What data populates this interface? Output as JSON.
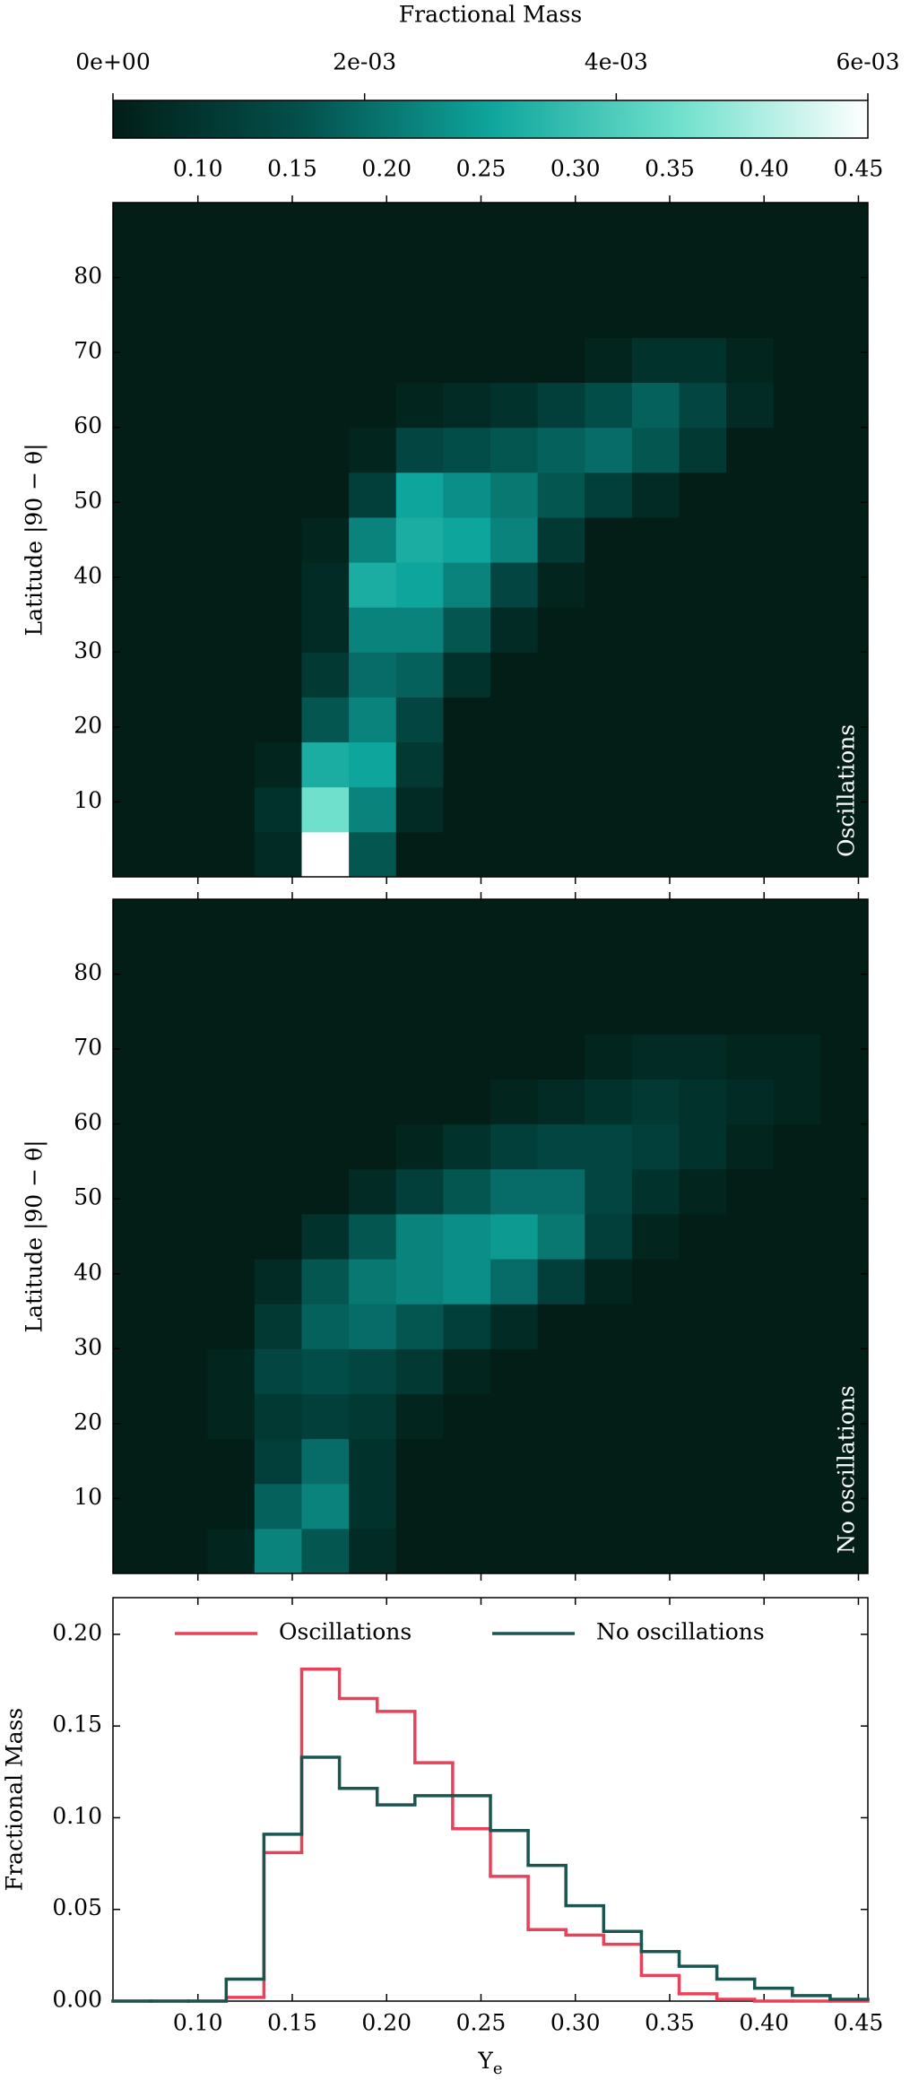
{
  "chart_data": [
    {
      "type": "heatmap",
      "colorbar_label": "Fractional Mass",
      "clim": [
        0,
        0.006
      ],
      "cticks": [
        {
          "value": 0,
          "label": "0e+00"
        },
        {
          "value": 0.002,
          "label": "2e-03"
        },
        {
          "value": 0.004,
          "label": "4e-03"
        },
        {
          "value": 0.006,
          "label": "6e-03"
        }
      ],
      "colormap": [
        "#021e17",
        "#03504c",
        "#0ea59c",
        "#6fe0cc",
        "#ffffff"
      ],
      "xbins": [
        0.055,
        0.08,
        0.105,
        0.13,
        0.155,
        0.18,
        0.205,
        0.23,
        0.255,
        0.28,
        0.305,
        0.33,
        0.355,
        0.38,
        0.405,
        0.43,
        0.455
      ],
      "ybins": [
        0,
        6,
        12,
        18,
        24,
        30,
        36,
        42,
        48,
        54,
        60,
        66,
        72,
        78,
        84,
        90
      ],
      "z": [
        [
          0,
          0,
          0,
          0.0004,
          0.006,
          0.0016,
          0,
          0,
          0,
          0,
          0,
          0,
          0,
          0,
          0,
          0
        ],
        [
          0,
          0,
          0,
          0.0006,
          0.0045,
          0.0024,
          0.0004,
          0,
          0,
          0,
          0,
          0,
          0,
          0,
          0,
          0
        ],
        [
          0,
          0,
          0,
          0.0002,
          0.0032,
          0.003,
          0.0008,
          0,
          0,
          0,
          0,
          0,
          0,
          0,
          0,
          0
        ],
        [
          0,
          0,
          0,
          0,
          0.0016,
          0.0024,
          0.0012,
          0,
          0,
          0,
          0,
          0,
          0,
          0,
          0,
          0
        ],
        [
          0,
          0,
          0,
          0,
          0.0008,
          0.002,
          0.0018,
          0.0006,
          0,
          0,
          0,
          0,
          0,
          0,
          0,
          0
        ],
        [
          0,
          0,
          0,
          0,
          0.0004,
          0.0024,
          0.0024,
          0.0016,
          0.0004,
          0,
          0,
          0,
          0,
          0,
          0,
          0
        ],
        [
          0,
          0,
          0,
          0,
          0.0004,
          0.0032,
          0.003,
          0.0024,
          0.0012,
          0.0002,
          0,
          0,
          0,
          0,
          0,
          0
        ],
        [
          0,
          0,
          0,
          0,
          0.0002,
          0.0024,
          0.0032,
          0.003,
          0.0024,
          0.0008,
          0,
          0,
          0,
          0,
          0,
          0
        ],
        [
          0,
          0,
          0,
          0,
          0,
          0.001,
          0.003,
          0.0026,
          0.0022,
          0.0016,
          0.001,
          0.0004,
          0,
          0,
          0,
          0
        ],
        [
          0,
          0,
          0,
          0,
          0,
          0.0002,
          0.0012,
          0.0014,
          0.0016,
          0.0018,
          0.002,
          0.0016,
          0.0008,
          0,
          0,
          0
        ],
        [
          0,
          0,
          0,
          0,
          0,
          0,
          0.0002,
          0.0004,
          0.0006,
          0.001,
          0.0014,
          0.0018,
          0.0012,
          0.0004,
          0,
          0
        ],
        [
          0,
          0,
          0,
          0,
          0,
          0,
          0,
          0,
          0,
          0,
          0.0002,
          0.0006,
          0.0006,
          0.0002,
          0,
          0
        ],
        [
          0,
          0,
          0,
          0,
          0,
          0,
          0,
          0,
          0,
          0,
          0,
          0,
          0,
          0,
          0,
          0
        ],
        [
          0,
          0,
          0,
          0,
          0,
          0,
          0,
          0,
          0,
          0,
          0,
          0,
          0,
          0,
          0,
          0
        ],
        [
          0,
          0,
          0,
          0,
          0,
          0,
          0,
          0,
          0,
          0,
          0,
          0,
          0,
          0,
          0,
          0
        ]
      ],
      "xlim": [
        0.055,
        0.455
      ],
      "xticks": [
        {
          "value": 0.1,
          "label": "0.10"
        },
        {
          "value": 0.15,
          "label": "0.15"
        },
        {
          "value": 0.2,
          "label": "0.20"
        },
        {
          "value": 0.25,
          "label": "0.25"
        },
        {
          "value": 0.3,
          "label": "0.30"
        },
        {
          "value": 0.35,
          "label": "0.35"
        },
        {
          "value": 0.4,
          "label": "0.40"
        },
        {
          "value": 0.45,
          "label": "0.45"
        }
      ],
      "ylim": [
        0,
        90
      ],
      "yticks": [
        10,
        20,
        30,
        40,
        50,
        60,
        70,
        80
      ],
      "ylabel": "Latitude |90 − θ|",
      "annotation": "Oscillations"
    },
    {
      "type": "heatmap",
      "xbins": [
        0.055,
        0.08,
        0.105,
        0.13,
        0.155,
        0.18,
        0.205,
        0.23,
        0.255,
        0.28,
        0.305,
        0.33,
        0.355,
        0.38,
        0.405,
        0.43,
        0.455
      ],
      "ybins": [
        0,
        6,
        12,
        18,
        24,
        30,
        36,
        42,
        48,
        54,
        60,
        66,
        72,
        78,
        84,
        90
      ],
      "z": [
        [
          0,
          0,
          0.0002,
          0.0024,
          0.0016,
          0.0004,
          0,
          0,
          0,
          0,
          0,
          0,
          0,
          0,
          0,
          0
        ],
        [
          0,
          0,
          0,
          0.0018,
          0.0024,
          0.0006,
          0,
          0,
          0,
          0,
          0,
          0,
          0,
          0,
          0,
          0
        ],
        [
          0,
          0,
          0,
          0.001,
          0.002,
          0.0006,
          0,
          0,
          0,
          0,
          0,
          0,
          0,
          0,
          0,
          0
        ],
        [
          0,
          0,
          0.0002,
          0.0008,
          0.001,
          0.0008,
          0.0002,
          0,
          0,
          0,
          0,
          0,
          0,
          0,
          0,
          0
        ],
        [
          0,
          0,
          0.0002,
          0.0012,
          0.0014,
          0.0012,
          0.0008,
          0.0002,
          0,
          0,
          0,
          0,
          0,
          0,
          0,
          0
        ],
        [
          0,
          0,
          0,
          0.0008,
          0.0018,
          0.002,
          0.0016,
          0.001,
          0.0004,
          0,
          0,
          0,
          0,
          0,
          0,
          0
        ],
        [
          0,
          0,
          0,
          0.0004,
          0.0016,
          0.0022,
          0.0024,
          0.0026,
          0.002,
          0.001,
          0.0002,
          0,
          0,
          0,
          0,
          0
        ],
        [
          0,
          0,
          0,
          0,
          0.0006,
          0.0016,
          0.0024,
          0.0026,
          0.0028,
          0.0022,
          0.001,
          0.0002,
          0,
          0,
          0,
          0
        ],
        [
          0,
          0,
          0,
          0,
          0,
          0.0004,
          0.001,
          0.0016,
          0.002,
          0.002,
          0.0012,
          0.0006,
          0.0002,
          0,
          0,
          0
        ],
        [
          0,
          0,
          0,
          0,
          0,
          0,
          0.0002,
          0.0006,
          0.001,
          0.0012,
          0.0012,
          0.001,
          0.0006,
          0.0002,
          0,
          0
        ],
        [
          0,
          0,
          0,
          0,
          0,
          0,
          0,
          0,
          0.0002,
          0.0004,
          0.0006,
          0.0008,
          0.0006,
          0.0004,
          0.0002,
          0
        ],
        [
          0,
          0,
          0,
          0,
          0,
          0,
          0,
          0,
          0,
          0,
          0.0002,
          0.0004,
          0.0004,
          0.0002,
          0.0002,
          0
        ],
        [
          0,
          0,
          0,
          0,
          0,
          0,
          0,
          0,
          0,
          0,
          0,
          0,
          0,
          0,
          0,
          0
        ],
        [
          0,
          0,
          0,
          0,
          0,
          0,
          0,
          0,
          0,
          0,
          0,
          0,
          0,
          0,
          0,
          0
        ],
        [
          0,
          0,
          0,
          0,
          0,
          0,
          0,
          0,
          0,
          0,
          0,
          0,
          0,
          0,
          0,
          0
        ]
      ],
      "xlim": [
        0.055,
        0.455
      ],
      "xticks": [
        0.1,
        0.15,
        0.2,
        0.25,
        0.3,
        0.35,
        0.4,
        0.45
      ],
      "ylim": [
        0,
        90
      ],
      "yticks": [
        10,
        20,
        30,
        40,
        50,
        60,
        70,
        80
      ],
      "ylabel": "Latitude |90 − θ|",
      "annotation": "No oscillations"
    },
    {
      "type": "histogram",
      "bins": [
        0.055,
        0.075,
        0.095,
        0.115,
        0.135,
        0.155,
        0.175,
        0.195,
        0.215,
        0.235,
        0.255,
        0.275,
        0.295,
        0.315,
        0.335,
        0.355,
        0.375,
        0.395,
        0.415,
        0.435,
        0.455
      ],
      "series": [
        {
          "name": "Oscillations",
          "color": "#e8415a",
          "values": [
            0,
            0,
            0,
            0.002,
            0.081,
            0.181,
            0.165,
            0.158,
            0.13,
            0.094,
            0.068,
            0.039,
            0.036,
            0.031,
            0.014,
            0.004,
            0.001,
            0,
            0,
            0
          ]
        },
        {
          "name": "No oscillations",
          "color": "#1a5550",
          "values": [
            0,
            0,
            0,
            0.012,
            0.091,
            0.133,
            0.116,
            0.107,
            0.112,
            0.112,
            0.093,
            0.074,
            0.052,
            0.038,
            0.027,
            0.019,
            0.012,
            0.007,
            0.003,
            0.001
          ]
        }
      ],
      "xlim": [
        0.055,
        0.455
      ],
      "xticks": [
        {
          "value": 0.1,
          "label": "0.10"
        },
        {
          "value": 0.15,
          "label": "0.15"
        },
        {
          "value": 0.2,
          "label": "0.20"
        },
        {
          "value": 0.25,
          "label": "0.25"
        },
        {
          "value": 0.3,
          "label": "0.30"
        },
        {
          "value": 0.35,
          "label": "0.35"
        },
        {
          "value": 0.4,
          "label": "0.40"
        },
        {
          "value": 0.45,
          "label": "0.45"
        }
      ],
      "ylim": [
        0,
        0.22
      ],
      "yticks": [
        {
          "value": 0,
          "label": "0.00"
        },
        {
          "value": 0.05,
          "label": "0.05"
        },
        {
          "value": 0.1,
          "label": "0.10"
        },
        {
          "value": 0.15,
          "label": "0.15"
        },
        {
          "value": 0.2,
          "label": "0.20"
        }
      ],
      "ylabel": "Fractional Mass",
      "xlabel": "Y",
      "xlabel_subscript": "e",
      "legend": "upper center"
    }
  ]
}
